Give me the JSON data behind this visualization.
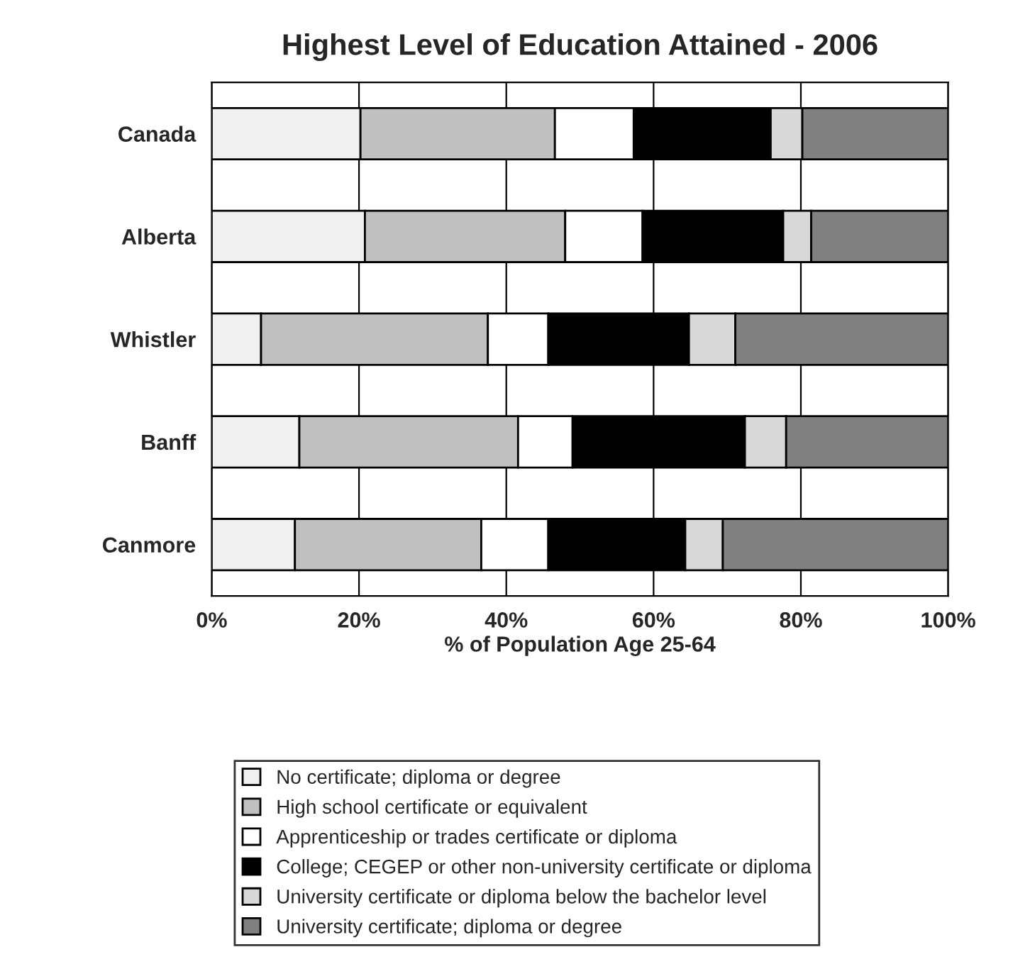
{
  "chart_data": {
    "type": "bar",
    "orientation": "horizontal",
    "stacked": true,
    "title": "Highest Level of Education Attained - 2006",
    "xlabel": "% of Population Age 25-64",
    "categories": [
      "Canada",
      "Alberta",
      "Whistler",
      "Banff",
      "Canmore"
    ],
    "series": [
      {
        "name": "No certificate; diploma or degree",
        "color": "#f0f0f0",
        "values": [
          20.2,
          20.8,
          6.7,
          11.9,
          11.3
        ]
      },
      {
        "name": "High school certificate or equivalent",
        "color": "#c0c0c0",
        "values": [
          26.4,
          27.2,
          30.8,
          29.7,
          25.3
        ]
      },
      {
        "name": "Apprenticeship or trades certificate or diploma",
        "color": "#ffffff",
        "values": [
          10.7,
          10.5,
          8.2,
          7.4,
          9.1
        ]
      },
      {
        "name": "College; CEGEP or other non-university certificate or diploma",
        "color": "#000000",
        "values": [
          18.6,
          19.1,
          19.1,
          23.4,
          18.6
        ]
      },
      {
        "name": "University certificate or diploma below the bachelor level",
        "color": "#d8d8d8",
        "values": [
          4.3,
          3.8,
          6.3,
          5.6,
          5.1
        ]
      },
      {
        "name": "University certificate; diploma or degree",
        "color": "#808080",
        "values": [
          19.8,
          18.6,
          28.9,
          22.0,
          30.6
        ]
      }
    ],
    "xlim": [
      0,
      100
    ],
    "xticks": [
      {
        "value": 0,
        "label": "0%"
      },
      {
        "value": 20,
        "label": "20%"
      },
      {
        "value": 40,
        "label": "40%"
      },
      {
        "value": 60,
        "label": "60%"
      },
      {
        "value": 80,
        "label": "80%"
      },
      {
        "value": 100,
        "label": "100%"
      }
    ],
    "grid": "x",
    "legend": "bottom"
  }
}
